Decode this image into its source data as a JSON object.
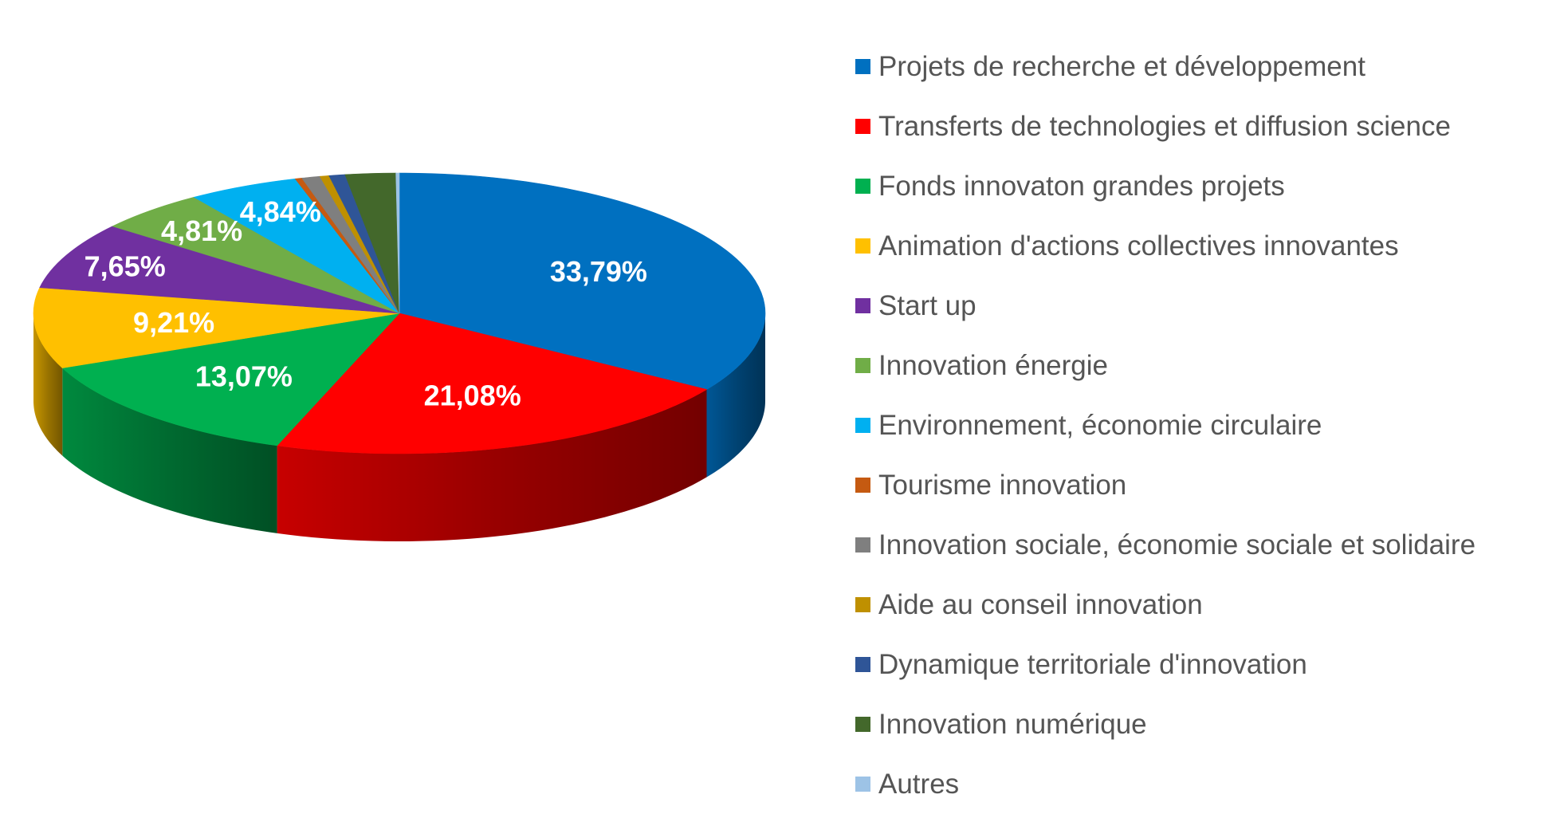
{
  "chart_data": {
    "type": "pie",
    "style": "3d",
    "title": "",
    "legend_position": "right",
    "slices": [
      {
        "name": "Projets de recherche et développement",
        "value": 33.79,
        "label": "33,79%",
        "color": "#0070C0"
      },
      {
        "name": "Transferts de technologies et diffusion science",
        "value": 21.08,
        "label": "21,08%",
        "color": "#FF0000"
      },
      {
        "name": "Fonds innovaton grandes projets",
        "value": 13.07,
        "label": "13,07%",
        "color": "#00B050"
      },
      {
        "name": "Animation d'actions collectives innovantes",
        "value": 9.21,
        "label": "9,21%",
        "color": "#FFC000"
      },
      {
        "name": "Start up",
        "value": 7.65,
        "label": "7,65%",
        "color": "#7030A0"
      },
      {
        "name": "Innovation énergie",
        "value": 4.81,
        "label": "4,81%",
        "color": "#70AD47"
      },
      {
        "name": "Environnement, économie circulaire",
        "value": 4.84,
        "label": "4,84%",
        "color": "#00B0F0"
      },
      {
        "name": "Tourisme innovation",
        "value": 0.3,
        "label": "",
        "color": "#C55A11"
      },
      {
        "name": "Innovation sociale, économie sociale et solidaire",
        "value": 0.8,
        "label": "",
        "color": "#7F7F7F"
      },
      {
        "name": "Aide au conseil innovation",
        "value": 0.4,
        "label": "",
        "color": "#BF9000"
      },
      {
        "name": "Dynamique territoriale d'innovation",
        "value": 0.7,
        "label": "",
        "color": "#2F5597"
      },
      {
        "name": "Innovation numérique",
        "value": 2.2,
        "label": "",
        "color": "#43682B"
      },
      {
        "name": "Autres",
        "value": 0.15,
        "label": "",
        "color": "#9DC3E6"
      }
    ]
  }
}
